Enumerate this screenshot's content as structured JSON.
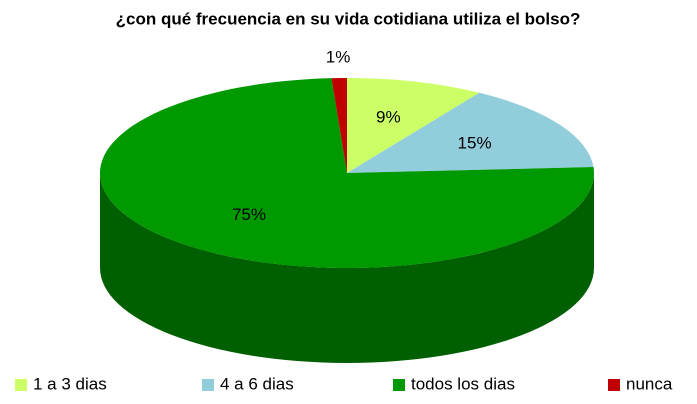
{
  "chart_data": {
    "type": "pie",
    "title": "¿con qué frecuencia en su vida cotidiana utiliza el bolso?",
    "categories": [
      "1 a 3 dias",
      "4 a 6 dias",
      "todos los dias",
      "nunca"
    ],
    "values": [
      9,
      15,
      75,
      1
    ],
    "value_labels": [
      "9%",
      "15%",
      "75%",
      "1%"
    ],
    "colors": [
      "#ccff66",
      "#92cddc",
      "#009900",
      "#c00000"
    ],
    "legend": "bottom"
  }
}
